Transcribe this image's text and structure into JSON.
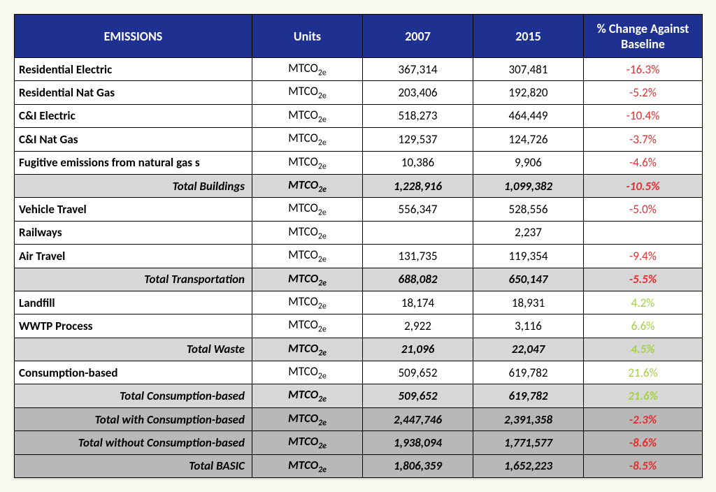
{
  "table": {
    "columns": [
      "EMISSIONS",
      "Units",
      "2007",
      "2015",
      "% Change Against Baseline"
    ],
    "unit_label": {
      "base": "MTCO",
      "sub": "2e"
    },
    "colors": {
      "header_bg": "#1f3190",
      "header_text": "#ffffff",
      "subtotal_bg": "#d7d7d7",
      "grand_bg": "#b8b8b8",
      "negative": "#e03030",
      "positive": "#a5d140",
      "border": "#000000"
    },
    "rows": [
      {
        "type": "data",
        "label": "Residential Electric",
        "y2007": "367,314",
        "y2015": "307,481",
        "pct": "-16.3%",
        "dir": "neg"
      },
      {
        "type": "data",
        "label": "Residential Nat Gas",
        "y2007": "203,406",
        "y2015": "192,820",
        "pct": "-5.2%",
        "dir": "neg"
      },
      {
        "type": "data",
        "label": "C&I Electric",
        "y2007": "518,273",
        "y2015": "464,449",
        "pct": "-10.4%",
        "dir": "neg"
      },
      {
        "type": "data",
        "label": "C&I Nat Gas",
        "y2007": "129,537",
        "y2015": "124,726",
        "pct": "-3.7%",
        "dir": "neg"
      },
      {
        "type": "data",
        "label": "Fugitive emissions from natural gas s",
        "y2007": "10,386",
        "y2015": "9,906",
        "pct": "-4.6%",
        "dir": "neg"
      },
      {
        "type": "subtotal",
        "label": "Total Buildings",
        "y2007": "1,228,916",
        "y2015": "1,099,382",
        "pct": "-10.5%",
        "dir": "neg"
      },
      {
        "type": "data",
        "label": "Vehicle Travel",
        "y2007": "556,347",
        "y2015": "528,556",
        "pct": "-5.0%",
        "dir": "neg"
      },
      {
        "type": "data",
        "label": "Railways",
        "y2007": "",
        "y2015": "2,237",
        "pct": "",
        "dir": ""
      },
      {
        "type": "data",
        "label": "Air Travel",
        "y2007": "131,735",
        "y2015": "119,354",
        "pct": "-9.4%",
        "dir": "neg"
      },
      {
        "type": "subtotal",
        "label": "Total Transportation",
        "y2007": "688,082",
        "y2015": "650,147",
        "pct": "-5.5%",
        "dir": "neg"
      },
      {
        "type": "data",
        "label": "Landfill",
        "y2007": "18,174",
        "y2015": "18,931",
        "pct": "4.2%",
        "dir": "pos"
      },
      {
        "type": "data",
        "label": "WWTP Process",
        "y2007": "2,922",
        "y2015": "3,116",
        "pct": "6.6%",
        "dir": "pos"
      },
      {
        "type": "subtotal",
        "label": "Total Waste",
        "y2007": "21,096",
        "y2015": "22,047",
        "pct": "4.5%",
        "dir": "pos"
      },
      {
        "type": "data",
        "label": "Consumption-based",
        "y2007": "509,652",
        "y2015": "619,782",
        "pct": "21.6%",
        "dir": "pos"
      },
      {
        "type": "subtotal",
        "label": "Total Consumption-based",
        "y2007": "509,652",
        "y2015": "619,782",
        "pct": "21.6%",
        "dir": "pos"
      },
      {
        "type": "grand",
        "label": "Total with Consumption-based",
        "y2007": "2,447,746",
        "y2015": "2,391,358",
        "pct": "-2.3%",
        "dir": "neg"
      },
      {
        "type": "grand",
        "label": "Total without Consumption-based",
        "y2007": "1,938,094",
        "y2015": "1,771,577",
        "pct": "-8.6%",
        "dir": "neg"
      },
      {
        "type": "grand",
        "label": "Total BASIC",
        "y2007": "1,806,359",
        "y2015": "1,652,223",
        "pct": "-8.5%",
        "dir": "neg"
      }
    ]
  }
}
